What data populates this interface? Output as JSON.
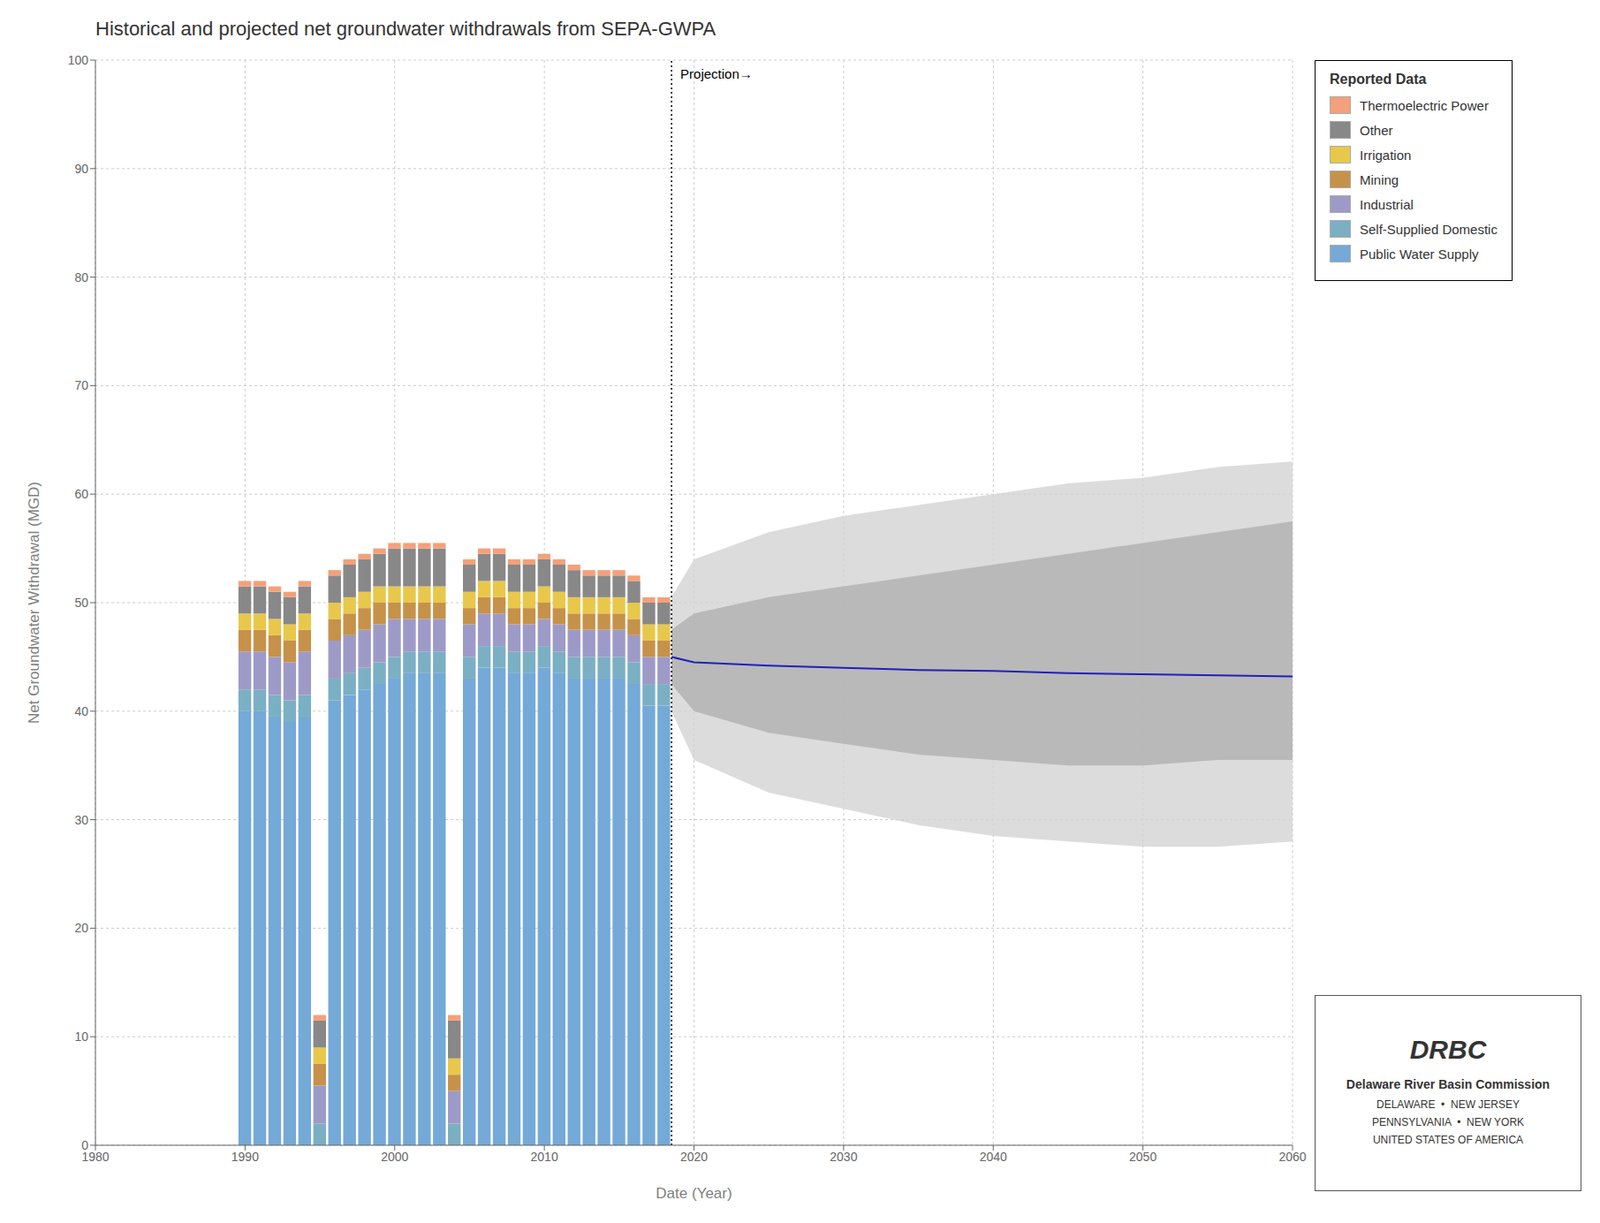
{
  "chart_data": {
    "type": "bar",
    "title": "Historical and projected net groundwater withdrawals from SEPA-GWPA",
    "xlabel": "Date (Year)",
    "ylabel": "Net Groundwater Withdrawal (MGD)",
    "stacked": true,
    "grid": true,
    "legend": "right",
    "legend_title": "Reported Data",
    "xlim": [
      1980,
      2060
    ],
    "xticks": [
      1980,
      1990,
      2000,
      2010,
      2020,
      2030,
      2040,
      2050,
      2060
    ],
    "ylim": [
      0,
      100
    ],
    "yticks": [
      0,
      10,
      20,
      30,
      40,
      50,
      60,
      70,
      80,
      90,
      100
    ],
    "x": [
      1990,
      1991,
      1992,
      1993,
      1994,
      1995,
      1996,
      1997,
      1998,
      1999,
      2000,
      2001,
      2002,
      2003,
      2004,
      2005,
      2006,
      2007,
      2008,
      2009,
      2010,
      2011,
      2012,
      2013,
      2014,
      2015,
      2016,
      2017,
      2018
    ],
    "series": [
      {
        "name": "Public Water Supply",
        "color": "#74a9d8",
        "values": [
          40.0,
          40.0,
          39.5,
          39.0,
          39.5,
          0.0,
          41.0,
          41.5,
          42.0,
          42.5,
          43.0,
          43.5,
          43.5,
          43.5,
          0.0,
          43.0,
          44.0,
          44.0,
          43.5,
          43.5,
          44.0,
          43.5,
          43.0,
          43.0,
          43.0,
          43.0,
          42.5,
          40.5,
          40.5
        ]
      },
      {
        "name": "Self-Supplied Domestic",
        "color": "#7bafc4",
        "values": [
          2.0,
          2.0,
          2.0,
          2.0,
          2.0,
          2.0,
          2.0,
          2.0,
          2.0,
          2.0,
          2.0,
          2.0,
          2.0,
          2.0,
          2.0,
          2.0,
          2.0,
          2.0,
          2.0,
          2.0,
          2.0,
          2.0,
          2.0,
          2.0,
          2.0,
          2.0,
          2.0,
          2.0,
          2.0
        ]
      },
      {
        "name": "Industrial",
        "color": "#9e9ac8",
        "values": [
          3.5,
          3.5,
          3.5,
          3.5,
          4.0,
          3.5,
          3.5,
          3.5,
          3.5,
          3.5,
          3.5,
          3.0,
          3.0,
          3.0,
          3.0,
          3.0,
          3.0,
          3.0,
          2.5,
          2.5,
          2.5,
          2.5,
          2.5,
          2.5,
          2.5,
          2.5,
          2.5,
          2.5,
          2.5
        ]
      },
      {
        "name": "Mining",
        "color": "#c6924a",
        "values": [
          2.0,
          2.0,
          2.0,
          2.0,
          2.0,
          2.0,
          2.0,
          2.0,
          2.0,
          2.0,
          1.5,
          1.5,
          1.5,
          1.5,
          1.5,
          1.5,
          1.5,
          1.5,
          1.5,
          1.5,
          1.5,
          1.5,
          1.5,
          1.5,
          1.5,
          1.5,
          1.5,
          1.5,
          1.5
        ]
      },
      {
        "name": "Irrigation",
        "color": "#e8c84a",
        "values": [
          1.5,
          1.5,
          1.5,
          1.5,
          1.5,
          1.5,
          1.5,
          1.5,
          1.5,
          1.5,
          1.5,
          1.5,
          1.5,
          1.5,
          1.5,
          1.5,
          1.5,
          1.5,
          1.5,
          1.5,
          1.5,
          1.5,
          1.5,
          1.5,
          1.5,
          1.5,
          1.5,
          1.5,
          1.5
        ]
      },
      {
        "name": "Other",
        "color": "#888888",
        "values": [
          2.5,
          2.5,
          2.5,
          2.5,
          2.5,
          2.5,
          2.5,
          3.0,
          3.0,
          3.0,
          3.5,
          3.5,
          3.5,
          3.5,
          3.5,
          2.5,
          2.5,
          2.5,
          2.5,
          2.5,
          2.5,
          2.5,
          2.5,
          2.0,
          2.0,
          2.0,
          2.0,
          2.0,
          2.0
        ]
      },
      {
        "name": "Thermoelectric Power",
        "color": "#f4a07a",
        "values": [
          0.5,
          0.5,
          0.5,
          0.5,
          0.5,
          0.5,
          0.5,
          0.5,
          0.5,
          0.5,
          0.5,
          0.5,
          0.5,
          0.5,
          0.5,
          0.5,
          0.5,
          0.5,
          0.5,
          0.5,
          0.5,
          0.5,
          0.5,
          0.5,
          0.5,
          0.5,
          0.5,
          0.5,
          0.5
        ]
      }
    ],
    "projection": {
      "type": "line",
      "x": [
        2018.5,
        2020,
        2025,
        2030,
        2035,
        2040,
        2045,
        2050,
        2055,
        2060
      ],
      "mean": [
        45.0,
        44.5,
        44.2,
        44.0,
        43.8,
        43.7,
        43.5,
        43.4,
        43.3,
        43.2
      ],
      "color": "#2020bb",
      "bands": [
        {
          "color": "#d3d3d3",
          "lower": [
            40.0,
            35.5,
            32.5,
            31.0,
            29.5,
            28.5,
            28.0,
            27.5,
            27.5,
            28.0
          ],
          "upper": [
            50.5,
            54.0,
            56.5,
            58.0,
            59.0,
            60.0,
            61.0,
            61.5,
            62.5,
            63.0
          ]
        },
        {
          "color": "#b0b0b0",
          "lower": [
            42.5,
            40.0,
            38.0,
            37.0,
            36.0,
            35.5,
            35.0,
            35.0,
            35.5,
            35.5
          ],
          "upper": [
            47.5,
            49.0,
            50.5,
            51.5,
            52.5,
            53.5,
            54.5,
            55.5,
            56.5,
            57.5
          ]
        }
      ]
    },
    "annotations": [
      {
        "text": "Projection→",
        "x": 2018.5
      },
      {
        "text": "DRBC"
      },
      {
        "text": "Delaware River Basin Commission"
      },
      {
        "text": "DELAWARE  •  NEW JERSEY"
      },
      {
        "text": "PENNSYLVANIA  •  NEW YORK"
      },
      {
        "text": "UNITED STATES OF AMERICA"
      }
    ]
  }
}
